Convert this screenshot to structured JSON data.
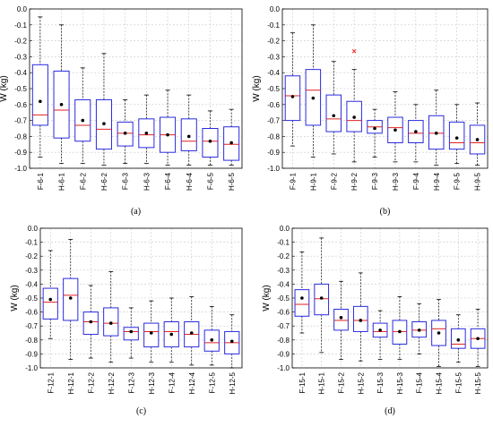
{
  "colors": {
    "box": "#2a2ae0",
    "median": "#e02020",
    "mean": "#000000",
    "whisker": "#000000",
    "grid": "#c8c8c8",
    "outlier": "#ff0000"
  },
  "chart_data": [
    {
      "panel_label": "(a)",
      "type": "box",
      "ylabel": "W (kg)",
      "ylim": [
        -1.0,
        0.0
      ],
      "yticks": [
        "0.0",
        "-0.1",
        "-0.2",
        "-0.3",
        "-0.4",
        "-0.5",
        "-0.6",
        "-0.7",
        "-0.8",
        "-0.9",
        "-1.0"
      ],
      "grid": true,
      "categories": [
        "F-6-1",
        "H-6-1",
        "F-6-2",
        "H-6-2",
        "F-6-3",
        "H-6-3",
        "F-6-4",
        "H-6-4",
        "F-6-5",
        "H-6-5"
      ],
      "boxes": [
        {
          "whisker_low": -0.93,
          "q1": -0.73,
          "median": -0.665,
          "q3": -0.35,
          "whisker_high": -0.05,
          "mean": -0.58
        },
        {
          "whisker_low": -0.97,
          "q1": -0.81,
          "median": -0.635,
          "q3": -0.39,
          "whisker_high": -0.1,
          "mean": -0.6
        },
        {
          "whisker_low": -0.97,
          "q1": -0.83,
          "median": -0.73,
          "q3": -0.57,
          "whisker_high": -0.37,
          "mean": -0.7
        },
        {
          "whisker_low": -0.98,
          "q1": -0.88,
          "median": -0.755,
          "q3": -0.57,
          "whisker_high": -0.28,
          "mean": -0.72
        },
        {
          "whisker_low": -0.97,
          "q1": -0.86,
          "median": -0.78,
          "q3": -0.71,
          "whisker_high": -0.57,
          "mean": -0.78
        },
        {
          "whisker_low": -0.97,
          "q1": -0.87,
          "median": -0.79,
          "q3": -0.69,
          "whisker_high": -0.54,
          "mean": -0.78
        },
        {
          "whisker_low": -0.98,
          "q1": -0.9,
          "median": -0.79,
          "q3": -0.68,
          "whisker_high": -0.51,
          "mean": -0.79
        },
        {
          "whisker_low": -0.98,
          "q1": -0.89,
          "median": -0.83,
          "q3": -0.69,
          "whisker_high": -0.54,
          "mean": -0.8
        },
        {
          "whisker_low": -0.98,
          "q1": -0.93,
          "median": -0.83,
          "q3": -0.75,
          "whisker_high": -0.64,
          "mean": -0.83
        },
        {
          "whisker_low": -0.98,
          "q1": -0.95,
          "median": -0.85,
          "q3": -0.74,
          "whisker_high": -0.63,
          "mean": -0.84
        }
      ],
      "outliers": []
    },
    {
      "panel_label": "(b)",
      "type": "box",
      "ylabel": "W (kg)",
      "ylim": [
        -1.0,
        0.0
      ],
      "yticks": [
        "0.0",
        "-0.1",
        "-0.2",
        "-0.3",
        "-0.4",
        "-0.5",
        "-0.6",
        "-0.7",
        "-0.8",
        "-0.9",
        "-1.0"
      ],
      "grid": true,
      "categories": [
        "F-9-1",
        "H-9-1",
        "F-9-2",
        "H-9-2",
        "F-9-3",
        "H-9-3",
        "F-9-4",
        "H-9-4",
        "F-9-5",
        "H-9-5"
      ],
      "boxes": [
        {
          "whisker_low": -0.86,
          "q1": -0.7,
          "median": -0.545,
          "q3": -0.42,
          "whisker_high": -0.15,
          "mean": -0.55
        },
        {
          "whisker_low": -0.93,
          "q1": -0.73,
          "median": -0.51,
          "q3": -0.38,
          "whisker_high": -0.1,
          "mean": -0.56
        },
        {
          "whisker_low": -0.91,
          "q1": -0.77,
          "median": -0.69,
          "q3": -0.54,
          "whisker_high": -0.33,
          "mean": -0.67
        },
        {
          "whisker_low": -0.96,
          "q1": -0.77,
          "median": -0.7,
          "q3": -0.58,
          "whisker_high": -0.38,
          "mean": -0.68
        },
        {
          "whisker_low": -0.93,
          "q1": -0.78,
          "median": -0.74,
          "q3": -0.7,
          "whisker_high": -0.63,
          "mean": -0.75
        },
        {
          "whisker_low": -0.96,
          "q1": -0.84,
          "median": -0.745,
          "q3": -0.68,
          "whisker_high": -0.52,
          "mean": -0.76
        },
        {
          "whisker_low": -0.96,
          "q1": -0.84,
          "median": -0.78,
          "q3": -0.7,
          "whisker_high": -0.6,
          "mean": -0.77
        },
        {
          "whisker_low": -0.98,
          "q1": -0.88,
          "median": -0.78,
          "q3": -0.67,
          "whisker_high": -0.51,
          "mean": -0.78
        },
        {
          "whisker_low": -0.97,
          "q1": -0.88,
          "median": -0.84,
          "q3": -0.71,
          "whisker_high": -0.6,
          "mean": -0.81
        },
        {
          "whisker_low": -0.98,
          "q1": -0.91,
          "median": -0.84,
          "q3": -0.73,
          "whisker_high": -0.59,
          "mean": -0.82
        }
      ],
      "outliers": [
        {
          "box": 3,
          "value": -0.265
        }
      ]
    },
    {
      "panel_label": "(c)",
      "type": "box",
      "ylabel": "W (kg)",
      "ylim": [
        -1.0,
        0.0
      ],
      "yticks": [
        "0.0",
        "-0.1",
        "-0.2",
        "-0.3",
        "-0.4",
        "-0.5",
        "-0.6",
        "-0.7",
        "-0.8",
        "-0.9",
        "-1.0"
      ],
      "grid": true,
      "categories": [
        "F-12-1",
        "H-12-1",
        "F-12-2",
        "H-12-2",
        "F-12-3",
        "H-12-3",
        "F-12-4",
        "H-12-4",
        "F-12-5",
        "H-12-5"
      ],
      "boxes": [
        {
          "whisker_low": -0.79,
          "q1": -0.65,
          "median": -0.53,
          "q3": -0.43,
          "whisker_high": -0.16,
          "mean": -0.51
        },
        {
          "whisker_low": -0.94,
          "q1": -0.66,
          "median": -0.48,
          "q3": -0.36,
          "whisker_high": -0.08,
          "mean": -0.5
        },
        {
          "whisker_low": -0.93,
          "q1": -0.76,
          "median": -0.67,
          "q3": -0.6,
          "whisker_high": -0.41,
          "mean": -0.67
        },
        {
          "whisker_low": -0.96,
          "q1": -0.77,
          "median": -0.68,
          "q3": -0.57,
          "whisker_high": -0.31,
          "mean": -0.68
        },
        {
          "whisker_low": -0.93,
          "q1": -0.8,
          "median": -0.74,
          "q3": -0.71,
          "whisker_high": -0.57,
          "mean": -0.74
        },
        {
          "whisker_low": -0.96,
          "q1": -0.85,
          "median": -0.74,
          "q3": -0.68,
          "whisker_high": -0.52,
          "mean": -0.75
        },
        {
          "whisker_low": -0.96,
          "q1": -0.85,
          "median": -0.74,
          "q3": -0.67,
          "whisker_high": -0.5,
          "mean": -0.76
        },
        {
          "whisker_low": -0.98,
          "q1": -0.85,
          "median": -0.76,
          "q3": -0.67,
          "whisker_high": -0.49,
          "mean": -0.75
        },
        {
          "whisker_low": -0.98,
          "q1": -0.88,
          "median": -0.82,
          "q3": -0.73,
          "whisker_high": -0.56,
          "mean": -0.8
        },
        {
          "whisker_low": -1.0,
          "q1": -0.9,
          "median": -0.82,
          "q3": -0.74,
          "whisker_high": -0.62,
          "mean": -0.81
        }
      ],
      "outliers": []
    },
    {
      "panel_label": "(d)",
      "type": "box",
      "ylabel": "W (kg)",
      "ylim": [
        -1.0,
        0.0
      ],
      "yticks": [
        "0.0",
        "-0.1",
        "-0.2",
        "-0.3",
        "-0.4",
        "-0.5",
        "-0.6",
        "-0.7",
        "-0.8",
        "-0.9",
        "-1.0"
      ],
      "grid": true,
      "categories": [
        "F-15-1",
        "H-15-1",
        "F-15-2",
        "H-15-2",
        "F-15-3",
        "H-15-3",
        "F-15-4",
        "H-15-4",
        "F-15-5",
        "H-15-5"
      ],
      "boxes": [
        {
          "whisker_low": -0.75,
          "q1": -0.63,
          "median": -0.545,
          "q3": -0.44,
          "whisker_high": -0.17,
          "mean": -0.5
        },
        {
          "whisker_low": -0.89,
          "q1": -0.62,
          "median": -0.505,
          "q3": -0.4,
          "whisker_high": -0.07,
          "mean": -0.5
        },
        {
          "whisker_low": -0.94,
          "q1": -0.73,
          "median": -0.66,
          "q3": -0.58,
          "whisker_high": -0.38,
          "mean": -0.64
        },
        {
          "whisker_low": -0.95,
          "q1": -0.74,
          "median": -0.66,
          "q3": -0.56,
          "whisker_high": -0.32,
          "mean": -0.66
        },
        {
          "whisker_low": -0.94,
          "q1": -0.78,
          "median": -0.74,
          "q3": -0.68,
          "whisker_high": -0.59,
          "mean": -0.73
        },
        {
          "whisker_low": -0.94,
          "q1": -0.83,
          "median": -0.74,
          "q3": -0.66,
          "whisker_high": -0.49,
          "mean": -0.74
        },
        {
          "whisker_low": -0.9,
          "q1": -0.78,
          "median": -0.73,
          "q3": -0.67,
          "whisker_high": -0.54,
          "mean": -0.73
        },
        {
          "whisker_low": -0.99,
          "q1": -0.84,
          "median": -0.72,
          "q3": -0.66,
          "whisker_high": -0.51,
          "mean": -0.75
        },
        {
          "whisker_low": -0.96,
          "q1": -0.86,
          "median": -0.83,
          "q3": -0.72,
          "whisker_high": -0.62,
          "mean": -0.8
        },
        {
          "whisker_low": -0.99,
          "q1": -0.86,
          "median": -0.79,
          "q3": -0.72,
          "whisker_high": -0.58,
          "mean": -0.79
        }
      ],
      "outliers": []
    }
  ]
}
